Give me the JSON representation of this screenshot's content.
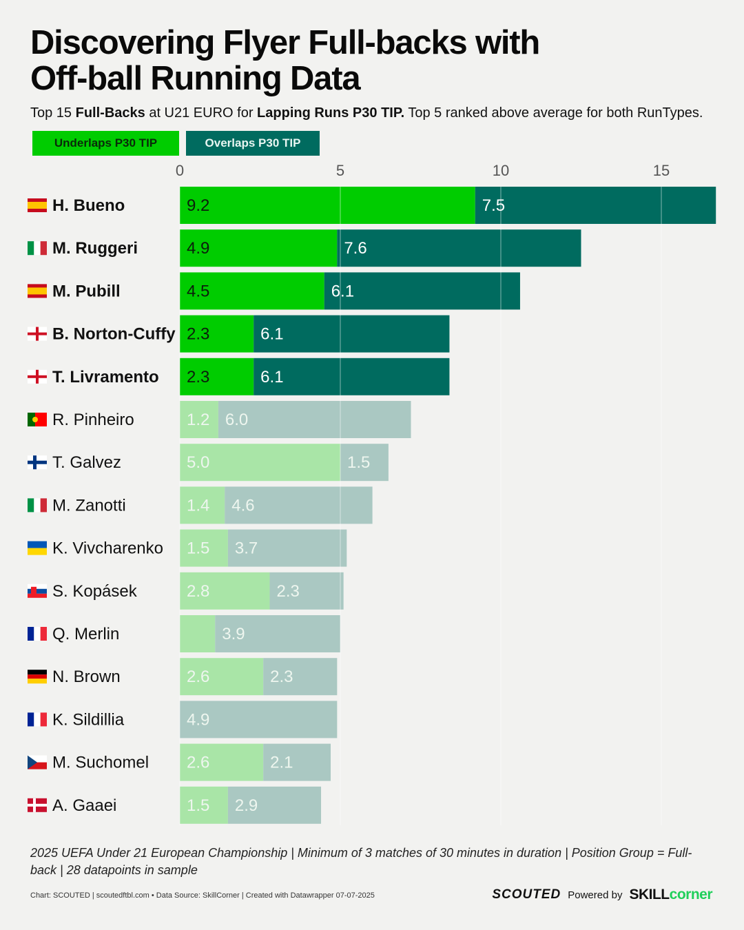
{
  "title_line1": "Discovering Flyer Full-backs with",
  "title_line2": "Off-ball Running Data",
  "subtitle": {
    "t1": "Top 15 ",
    "b1": "Full-Backs",
    "t2": " at U21 EURO for ",
    "b2": "Lapping Runs P30 TIP.",
    "t3": " Top 5 ranked above average for both RunTypes."
  },
  "legend": {
    "underlaps": "Underlaps P30 TIP",
    "overlaps": "Overlaps P30 TIP"
  },
  "colors": {
    "underlaps": "#00cc00",
    "overlaps": "#006b5f",
    "underlaps_muted": "#a9e5a7",
    "overlaps_muted": "#aac8c2",
    "label_muted": "#eef6ef"
  },
  "chart_data": {
    "type": "bar",
    "orientation": "horizontal",
    "stacked": true,
    "xlim": [
      0,
      17
    ],
    "xticks": [
      0,
      5,
      10,
      15
    ],
    "grid": true,
    "highlighted_count": 5,
    "categories": [
      "H. Bueno",
      "M. Ruggeri",
      "M. Pubill",
      "B. Norton-Cuffy",
      "T. Livramento",
      "R. Pinheiro",
      "T. Galvez",
      "M. Zanotti",
      "K. Vivcharenko",
      "S. Kopásek",
      "Q. Merlin",
      "N. Brown",
      "K. Sildillia",
      "M. Suchomel",
      "A. Gaaei"
    ],
    "flags": [
      "es",
      "it",
      "es",
      "en",
      "en",
      "pt",
      "fi",
      "it",
      "ua",
      "sk",
      "fr",
      "de",
      "fr",
      "cz",
      "dk"
    ],
    "series": [
      {
        "name": "Underlaps P30 TIP",
        "values": [
          9.2,
          4.9,
          4.5,
          2.3,
          2.3,
          1.2,
          5.0,
          1.4,
          1.5,
          2.8,
          1.1,
          2.6,
          0,
          2.6,
          1.5
        ],
        "labels": [
          "9.2",
          "4.9",
          "4.5",
          "2.3",
          "2.3",
          "1.2",
          "5.0",
          "1.4",
          "1.5",
          "2.8",
          "",
          "2.6",
          "",
          "2.6",
          "1.5"
        ]
      },
      {
        "name": "Overlaps P30 TIP",
        "values": [
          7.5,
          7.6,
          6.1,
          6.1,
          6.1,
          6.0,
          1.5,
          4.6,
          3.7,
          2.3,
          3.9,
          2.3,
          4.9,
          2.1,
          2.9
        ],
        "labels": [
          "7.5",
          "7.6",
          "6.1",
          "6.1",
          "6.1",
          "6.0",
          "1.5",
          "4.6",
          "3.7",
          "2.3",
          "3.9",
          "2.3",
          "4.9",
          "2.1",
          "2.9"
        ]
      }
    ]
  },
  "footnote": "2025 UEFA Under 21 European Championship | Minimum of 3 matches of 30 minutes in duration | Position Group = Full-back | 28 datapoints in sample",
  "credit": "Chart: SCOUTED | scoutedftbl.com • Data Source: SkillCorner | Created with Datawrapper 07-07-2025",
  "brand": {
    "scouted": "SCOUTED",
    "powered": "Powered by",
    "skill": "SKILL",
    "corner": "corner"
  }
}
